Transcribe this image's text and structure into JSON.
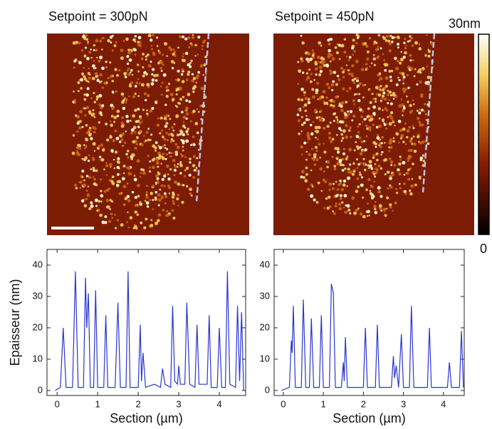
{
  "images": [
    {
      "title": "Setpoint = 300pN"
    },
    {
      "title": "Setpoint = 450pN"
    }
  ],
  "colorbar": {
    "max_label": "30nm",
    "min_label": "0"
  },
  "chart_data": [
    {
      "type": "line",
      "y_label": "Epaisseur (nm)",
      "x_label": "Section (µm)",
      "xlim": [
        -0.25,
        4.65
      ],
      "ylim": [
        -1.6,
        45
      ],
      "xticks": [
        0,
        1,
        2,
        3,
        4
      ],
      "yticks": [
        0,
        10,
        20,
        30,
        40
      ],
      "series": [
        {
          "color": "#2a35d0",
          "x": [
            -0.05,
            0.08,
            0.15,
            0.22,
            0.38,
            0.45,
            0.52,
            0.65,
            0.7,
            0.73,
            0.77,
            0.82,
            0.9,
            0.95,
            1.0,
            1.15,
            1.2,
            1.25,
            1.43,
            1.5,
            1.56,
            1.7,
            1.75,
            1.8,
            2.0,
            2.05,
            2.08,
            2.12,
            2.18,
            2.4,
            2.55,
            2.6,
            2.66,
            2.8,
            2.85,
            2.9,
            2.97,
            3.0,
            3.04,
            3.15,
            3.2,
            3.27,
            3.4,
            3.45,
            3.5,
            3.7,
            3.75,
            3.8,
            3.95,
            4.0,
            4.06,
            4.15,
            4.2,
            4.26,
            4.4,
            4.45,
            4.5,
            4.55,
            4.6
          ],
          "values": [
            0,
            1,
            20,
            1,
            1,
            38,
            1,
            1,
            36,
            20,
            31,
            1,
            1,
            32,
            1,
            1,
            24,
            1,
            1,
            28,
            1,
            1,
            38,
            1,
            1,
            21,
            3,
            12,
            1,
            2,
            1,
            7,
            2,
            1,
            27,
            3,
            2,
            8,
            2,
            2,
            28,
            2,
            1,
            21,
            2,
            2,
            24,
            1,
            1,
            20,
            1,
            1,
            38,
            2,
            1,
            27,
            3,
            25,
            0
          ]
        }
      ]
    },
    {
      "type": "line",
      "x_label": "Section (µm)",
      "xlim": [
        -0.23,
        4.52
      ],
      "ylim": [
        -1.6,
        45
      ],
      "xticks": [
        0,
        1,
        2,
        3,
        4
      ],
      "yticks": [
        0,
        10,
        20,
        30,
        40
      ],
      "series": [
        {
          "color": "#2a35d0",
          "x": [
            -0.05,
            0.15,
            0.2,
            0.22,
            0.25,
            0.3,
            0.45,
            0.5,
            0.56,
            0.65,
            0.7,
            0.76,
            0.9,
            0.95,
            1.0,
            1.15,
            1.2,
            1.25,
            1.3,
            1.45,
            1.5,
            1.52,
            1.55,
            1.6,
            2.0,
            2.05,
            2.1,
            2.3,
            2.35,
            2.4,
            2.7,
            2.75,
            2.78,
            2.82,
            2.88,
            2.95,
            3.0,
            3.15,
            3.2,
            3.26,
            3.6,
            3.65,
            3.7,
            4.1,
            4.15,
            4.2,
            4.4,
            4.45,
            4.5
          ],
          "values": [
            0,
            1,
            16,
            12,
            27,
            1,
            1,
            29,
            1,
            1,
            23,
            1,
            1,
            24,
            1,
            1,
            34,
            31,
            1,
            1,
            9,
            3,
            17,
            1,
            1,
            20,
            1,
            1,
            21,
            1,
            1,
            11,
            4,
            8,
            1,
            18,
            1,
            1,
            27,
            1,
            1,
            20,
            1,
            1,
            9,
            1,
            1,
            19,
            1
          ]
        }
      ]
    }
  ]
}
